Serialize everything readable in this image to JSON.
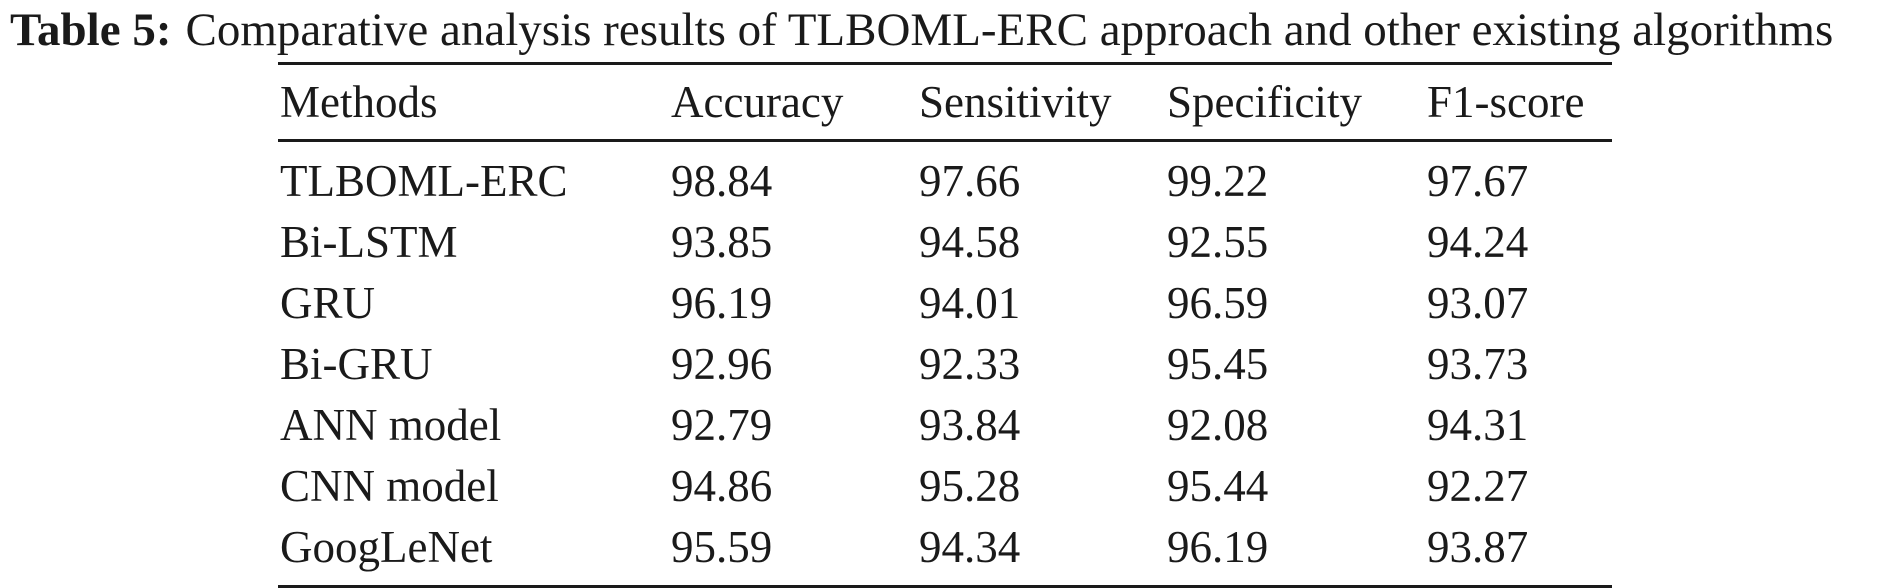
{
  "caption": {
    "label": "Table 5:",
    "text": "Comparative analysis results of TLBOML-ERC approach and other existing algorithms"
  },
  "table": {
    "headers": [
      "Methods",
      "Accuracy",
      "Sensitivity",
      "Specificity",
      "F1-score"
    ],
    "rows": [
      [
        "TLBOML-ERC",
        "98.84",
        "97.66",
        "99.22",
        "97.67"
      ],
      [
        "Bi-LSTM",
        "93.85",
        "94.58",
        "92.55",
        "94.24"
      ],
      [
        "GRU",
        "96.19",
        "94.01",
        "96.59",
        "93.07"
      ],
      [
        "Bi-GRU",
        "92.96",
        "92.33",
        "95.45",
        "93.73"
      ],
      [
        "ANN model",
        "92.79",
        "93.84",
        "92.08",
        "94.31"
      ],
      [
        "CNN model",
        "94.86",
        "95.28",
        "95.44",
        "92.27"
      ],
      [
        "GoogLeNet",
        "95.59",
        "94.34",
        "96.19",
        "93.87"
      ]
    ]
  }
}
